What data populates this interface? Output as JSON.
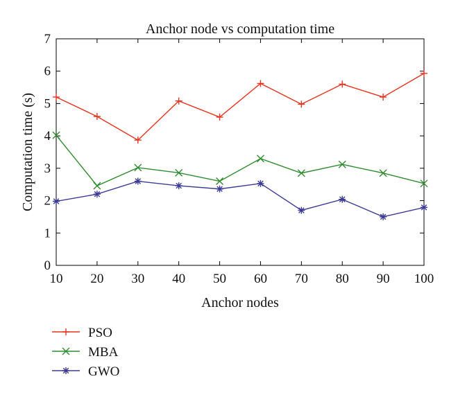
{
  "chart_data": {
    "type": "line",
    "title": "Anchor node vs computation time",
    "xlabel": "Anchor nodes",
    "ylabel": "Computation time (s)",
    "x": [
      10,
      20,
      30,
      40,
      50,
      60,
      70,
      80,
      90,
      100
    ],
    "xlim": [
      10,
      100
    ],
    "ylim": [
      0,
      7
    ],
    "xticks": [
      10,
      20,
      30,
      40,
      50,
      60,
      70,
      80,
      90,
      100
    ],
    "yticks": [
      0,
      1,
      2,
      3,
      4,
      5,
      6,
      7
    ],
    "grid": false,
    "legend_position": "below",
    "series": [
      {
        "name": "PSO",
        "color": "#e8321e",
        "marker": "plus",
        "values": [
          5.2,
          4.6,
          3.87,
          5.08,
          4.58,
          5.62,
          4.98,
          5.6,
          5.2,
          5.93
        ]
      },
      {
        "name": "MBA",
        "color": "#2e8b2e",
        "marker": "x",
        "values": [
          4.02,
          2.46,
          3.02,
          2.86,
          2.6,
          3.3,
          2.85,
          3.12,
          2.85,
          2.53
        ]
      },
      {
        "name": "GWO",
        "color": "#3b3b96",
        "marker": "star",
        "values": [
          1.98,
          2.2,
          2.6,
          2.46,
          2.36,
          2.53,
          1.7,
          2.04,
          1.5,
          1.79
        ]
      }
    ]
  }
}
